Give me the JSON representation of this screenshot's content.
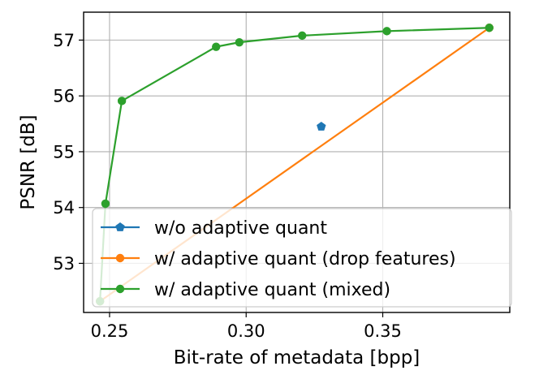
{
  "chart_data": {
    "type": "line",
    "title": "",
    "xlabel": "Bit-rate of metadata [bpp]",
    "ylabel": "PSNR [dB]",
    "xlim": [
      0.2405,
      0.3965
    ],
    "ylim": [
      52.12,
      57.5
    ],
    "xticks": [
      0.25,
      0.3,
      0.35
    ],
    "xtick_labels": [
      "0.25",
      "0.30",
      "0.35"
    ],
    "yticks": [
      53,
      54,
      55,
      56,
      57
    ],
    "ytick_labels": [
      "53",
      "54",
      "55",
      "56",
      "57"
    ],
    "grid": true,
    "legend_position": "lower-left",
    "series": [
      {
        "name": "w/o adaptive quant",
        "color": "#1f77b4",
        "marker": "pentagon",
        "line": true,
        "x": [
          0.3275
        ],
        "y": [
          55.45
        ]
      },
      {
        "name": "w/ adaptive quant (drop features)",
        "color": "#ff7f0e",
        "marker": "circle",
        "line": true,
        "x": [
          0.2465,
          0.389
        ],
        "y": [
          52.32,
          57.22
        ]
      },
      {
        "name": "w/ adaptive quant (mixed)",
        "color": "#2ca02c",
        "marker": "circle",
        "line": true,
        "x": [
          0.2465,
          0.2485,
          0.2545,
          0.289,
          0.2975,
          0.3205,
          0.3515,
          0.389
        ],
        "y": [
          52.32,
          54.07,
          55.91,
          56.88,
          56.96,
          57.08,
          57.16,
          57.22
        ]
      }
    ]
  }
}
